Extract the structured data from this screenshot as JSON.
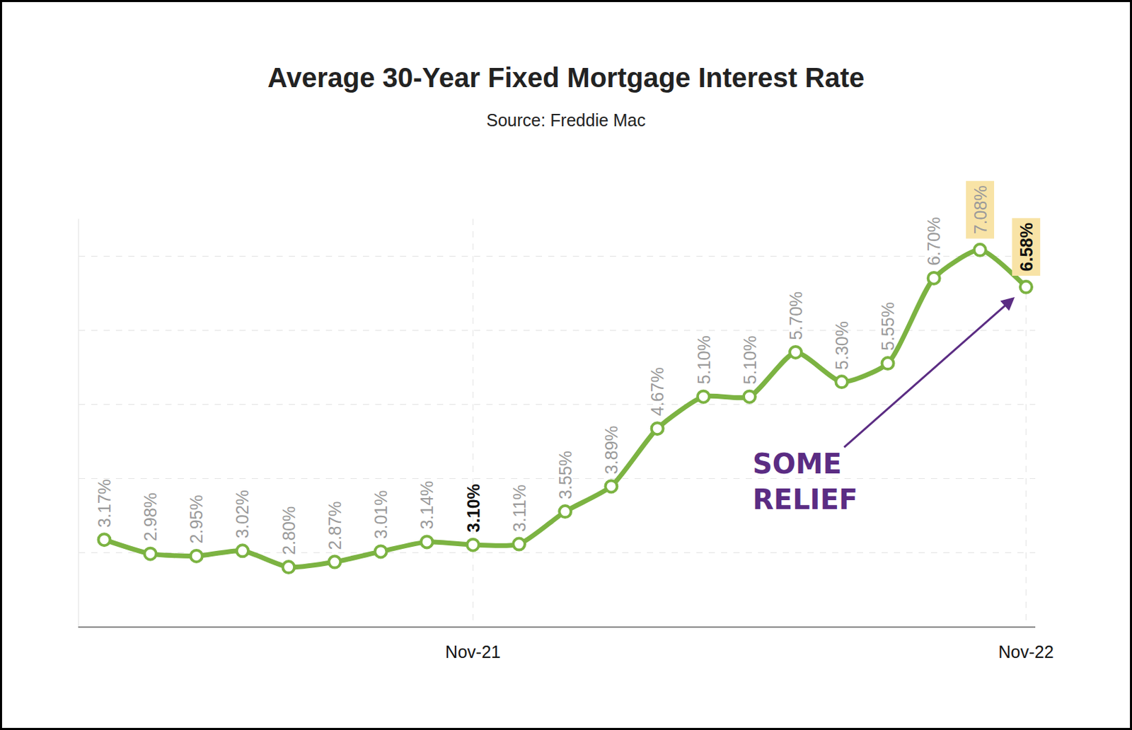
{
  "chart_data": {
    "type": "line",
    "title": "Average 30-Year Fixed Mortgage Interest Rate",
    "subtitle": "Source: Freddie Mac",
    "categories": [
      null,
      null,
      null,
      null,
      null,
      null,
      null,
      null,
      "Nov-21",
      null,
      null,
      null,
      null,
      null,
      null,
      null,
      null,
      null,
      null,
      null,
      "Nov-22"
    ],
    "values": [
      3.17,
      2.98,
      2.95,
      3.02,
      2.8,
      2.87,
      3.01,
      3.14,
      3.1,
      3.11,
      3.55,
      3.89,
      4.67,
      5.1,
      5.1,
      5.7,
      5.3,
      5.55,
      6.7,
      7.08,
      6.58
    ],
    "value_labels": [
      "3.17%",
      "2.98%",
      "2.95%",
      "3.02%",
      "2.80%",
      "2.87%",
      "3.01%",
      "3.14%",
      "3.10%",
      "3.11%",
      "3.55%",
      "3.89%",
      "4.67%",
      "5.10%",
      "5.10%",
      "5.70%",
      "5.30%",
      "5.55%",
      "6.70%",
      "7.08%",
      "6.58%"
    ],
    "color": "#7cb342",
    "marker": "circle",
    "ylim": [
      2,
      7.5
    ],
    "yticks": [
      2,
      3,
      4,
      5,
      6,
      7
    ],
    "grid": true,
    "tick_labels": "x",
    "data_labels": true,
    "annotations": [
      {
        "text": "SOME RELIEF"
      }
    ]
  }
}
